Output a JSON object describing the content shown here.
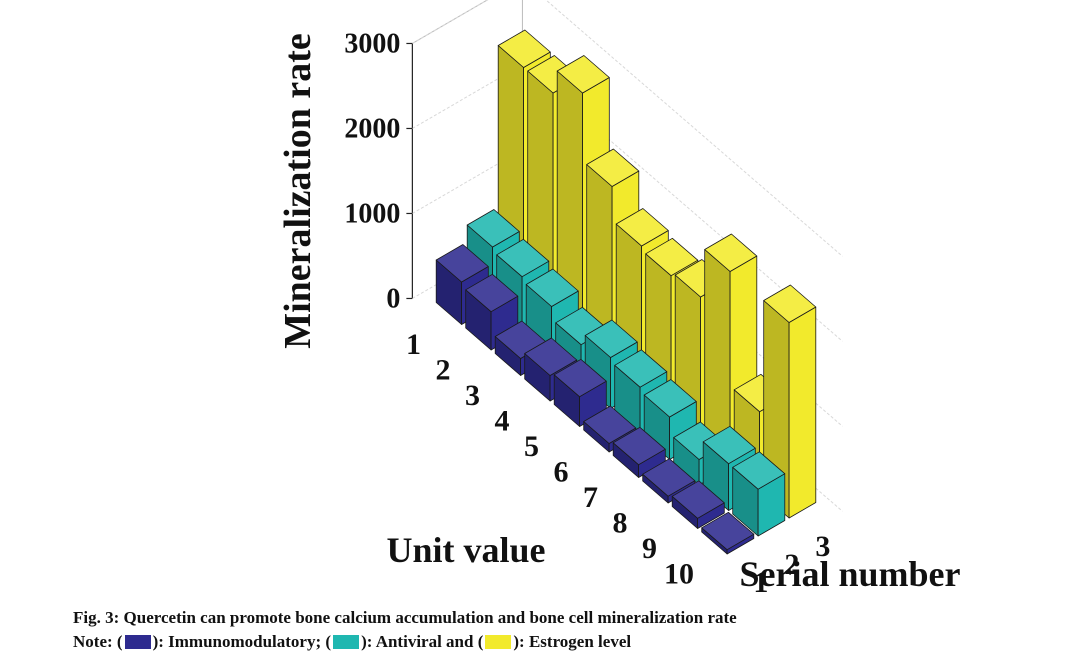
{
  "chart_data": {
    "type": "bar3d",
    "ylabel": "Mineralization rate",
    "xlabel": "Unit value",
    "zlabel": "Serial number",
    "yticks": [
      0,
      1000,
      2000,
      3000
    ],
    "ylim": [
      0,
      3000
    ],
    "x": [
      1,
      2,
      3,
      4,
      5,
      6,
      7,
      8,
      9,
      10
    ],
    "serial": [
      1,
      2,
      3
    ],
    "grid": true,
    "series": [
      {
        "name": "Immunomodulatory",
        "color": "#2e2b8f",
        "values": [
          500,
          450,
          200,
          300,
          350,
          100,
          150,
          80,
          120,
          50
        ]
      },
      {
        "name": "Antiviral",
        "color": "#1fb7b0",
        "values": [
          700,
          650,
          600,
          450,
          600,
          550,
          500,
          300,
          550,
          550
        ]
      },
      {
        "name": "Estrogen level",
        "color": "#f2ea2c",
        "values": [
          2600,
          2600,
          2900,
          2100,
          1700,
          1650,
          1700,
          2300,
          950,
          2300
        ]
      }
    ]
  },
  "caption": {
    "title": "Fig. 3: Quercetin can promote bone calcium accumulation and bone cell mineralization rate",
    "note_prefix": "Note: (",
    "note_1": "): Immunomodulatory; (",
    "note_2": "): Antiviral and (",
    "note_3": "): Estrogen level"
  }
}
